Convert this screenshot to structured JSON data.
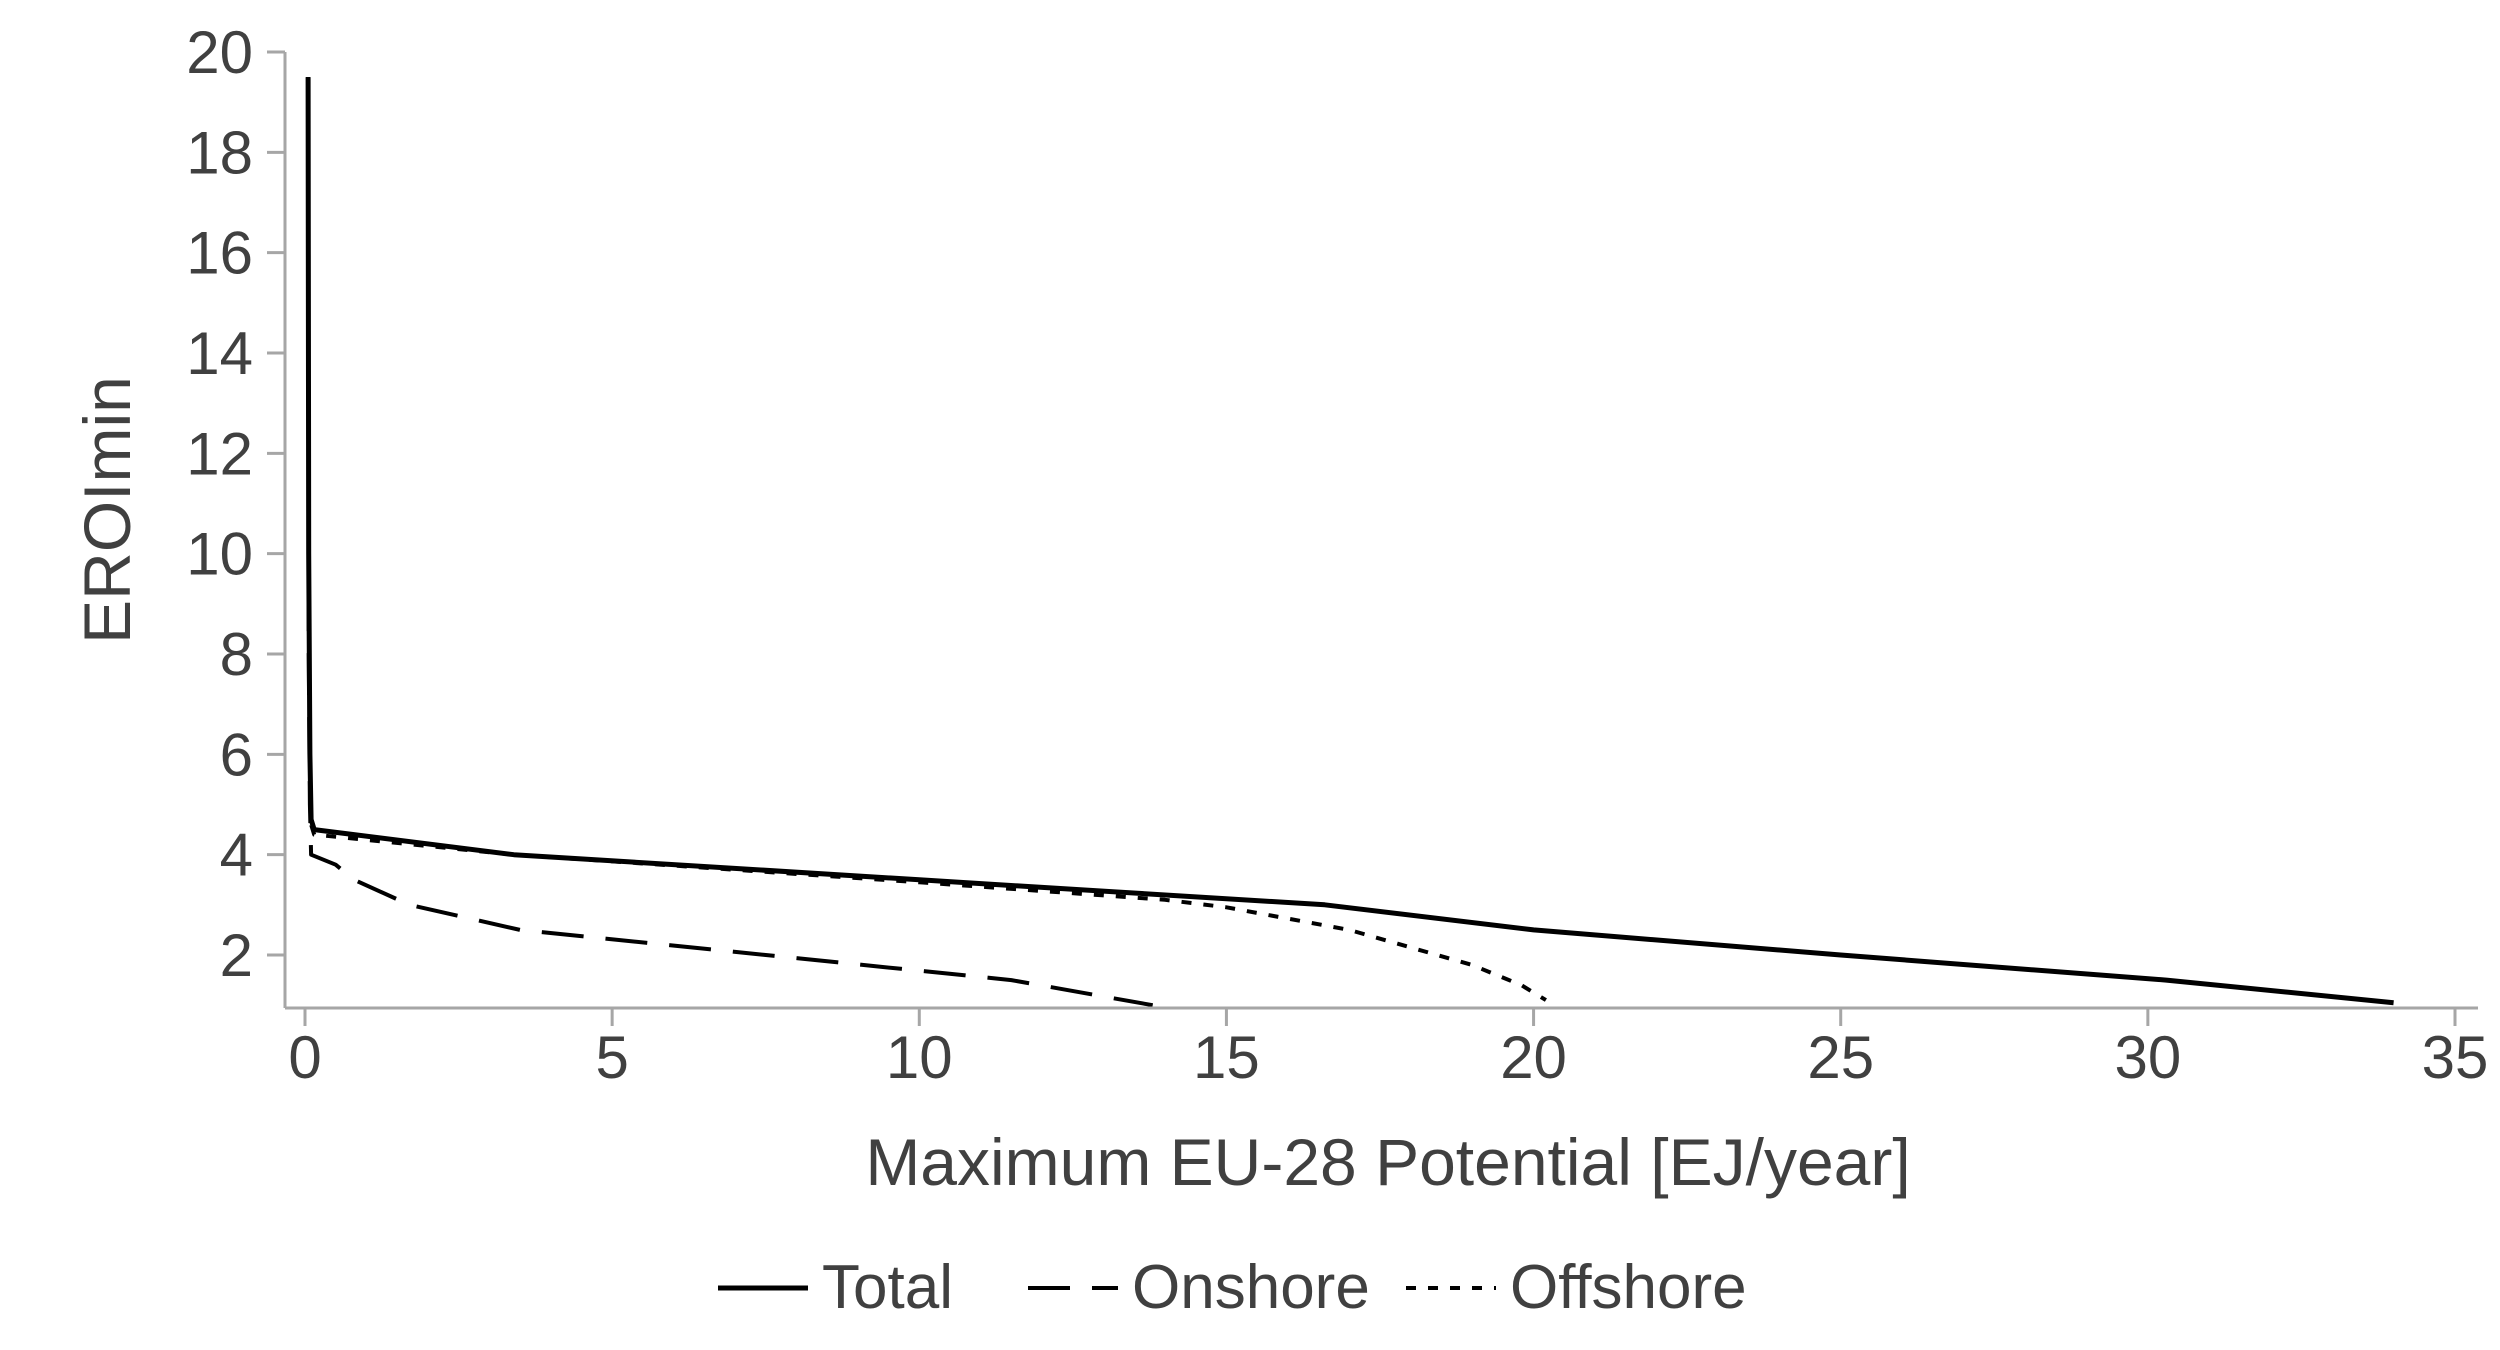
{
  "chart_data": {
    "type": "line",
    "title": "",
    "xlabel": "Maximum EU-28 Potential [EJ/year]",
    "ylabel": "EROImin",
    "xlim": [
      0,
      35
    ],
    "ylim": [
      1,
      20
    ],
    "x_ticks": [
      0,
      5,
      10,
      15,
      20,
      25,
      30,
      35
    ],
    "y_ticks": [
      2,
      4,
      6,
      8,
      10,
      12,
      14,
      16,
      18,
      20
    ],
    "x_tick_labels": [
      "0",
      "5",
      "10",
      "15",
      "20",
      "25",
      "30",
      "35"
    ],
    "y_tick_labels": [
      "2",
      "4",
      "6",
      "8",
      "10",
      "12",
      "14",
      "16",
      "18",
      "20"
    ],
    "grid": false,
    "legend_position": "bottom",
    "series": [
      {
        "name": "Total",
        "style": "solid",
        "color": "#000000",
        "points": [
          [
            0.05,
            19.5
          ],
          [
            0.06,
            10
          ],
          [
            0.08,
            6
          ],
          [
            0.1,
            4.7
          ],
          [
            0.15,
            4.5
          ],
          [
            3.4,
            4.0
          ],
          [
            10,
            3.5
          ],
          [
            16.6,
            3.0
          ],
          [
            20,
            2.5
          ],
          [
            25,
            2.0
          ],
          [
            30.3,
            1.5
          ],
          [
            34,
            1.05
          ]
        ]
      },
      {
        "name": "Onshore",
        "style": "dashed",
        "color": "#000000",
        "points": [
          [
            0.05,
            19.5
          ],
          [
            0.06,
            8
          ],
          [
            0.08,
            5
          ],
          [
            0.1,
            4.0
          ],
          [
            0.5,
            3.8
          ],
          [
            0.8,
            3.5
          ],
          [
            1.7,
            3.0
          ],
          [
            3.5,
            2.5
          ],
          [
            7.5,
            2.0
          ],
          [
            11.5,
            1.5
          ],
          [
            13.8,
            1.0
          ]
        ]
      },
      {
        "name": "Offshore",
        "style": "dotted",
        "color": "#000000",
        "points": [
          [
            0.05,
            19.5
          ],
          [
            0.06,
            10
          ],
          [
            0.08,
            6
          ],
          [
            0.1,
            4.6
          ],
          [
            0.15,
            4.4
          ],
          [
            3.4,
            4.0
          ],
          [
            10,
            3.45
          ],
          [
            14,
            3.1
          ],
          [
            15,
            2.95
          ],
          [
            17,
            2.5
          ],
          [
            19,
            1.8
          ],
          [
            19.8,
            1.4
          ],
          [
            20.2,
            1.1
          ]
        ]
      }
    ]
  }
}
